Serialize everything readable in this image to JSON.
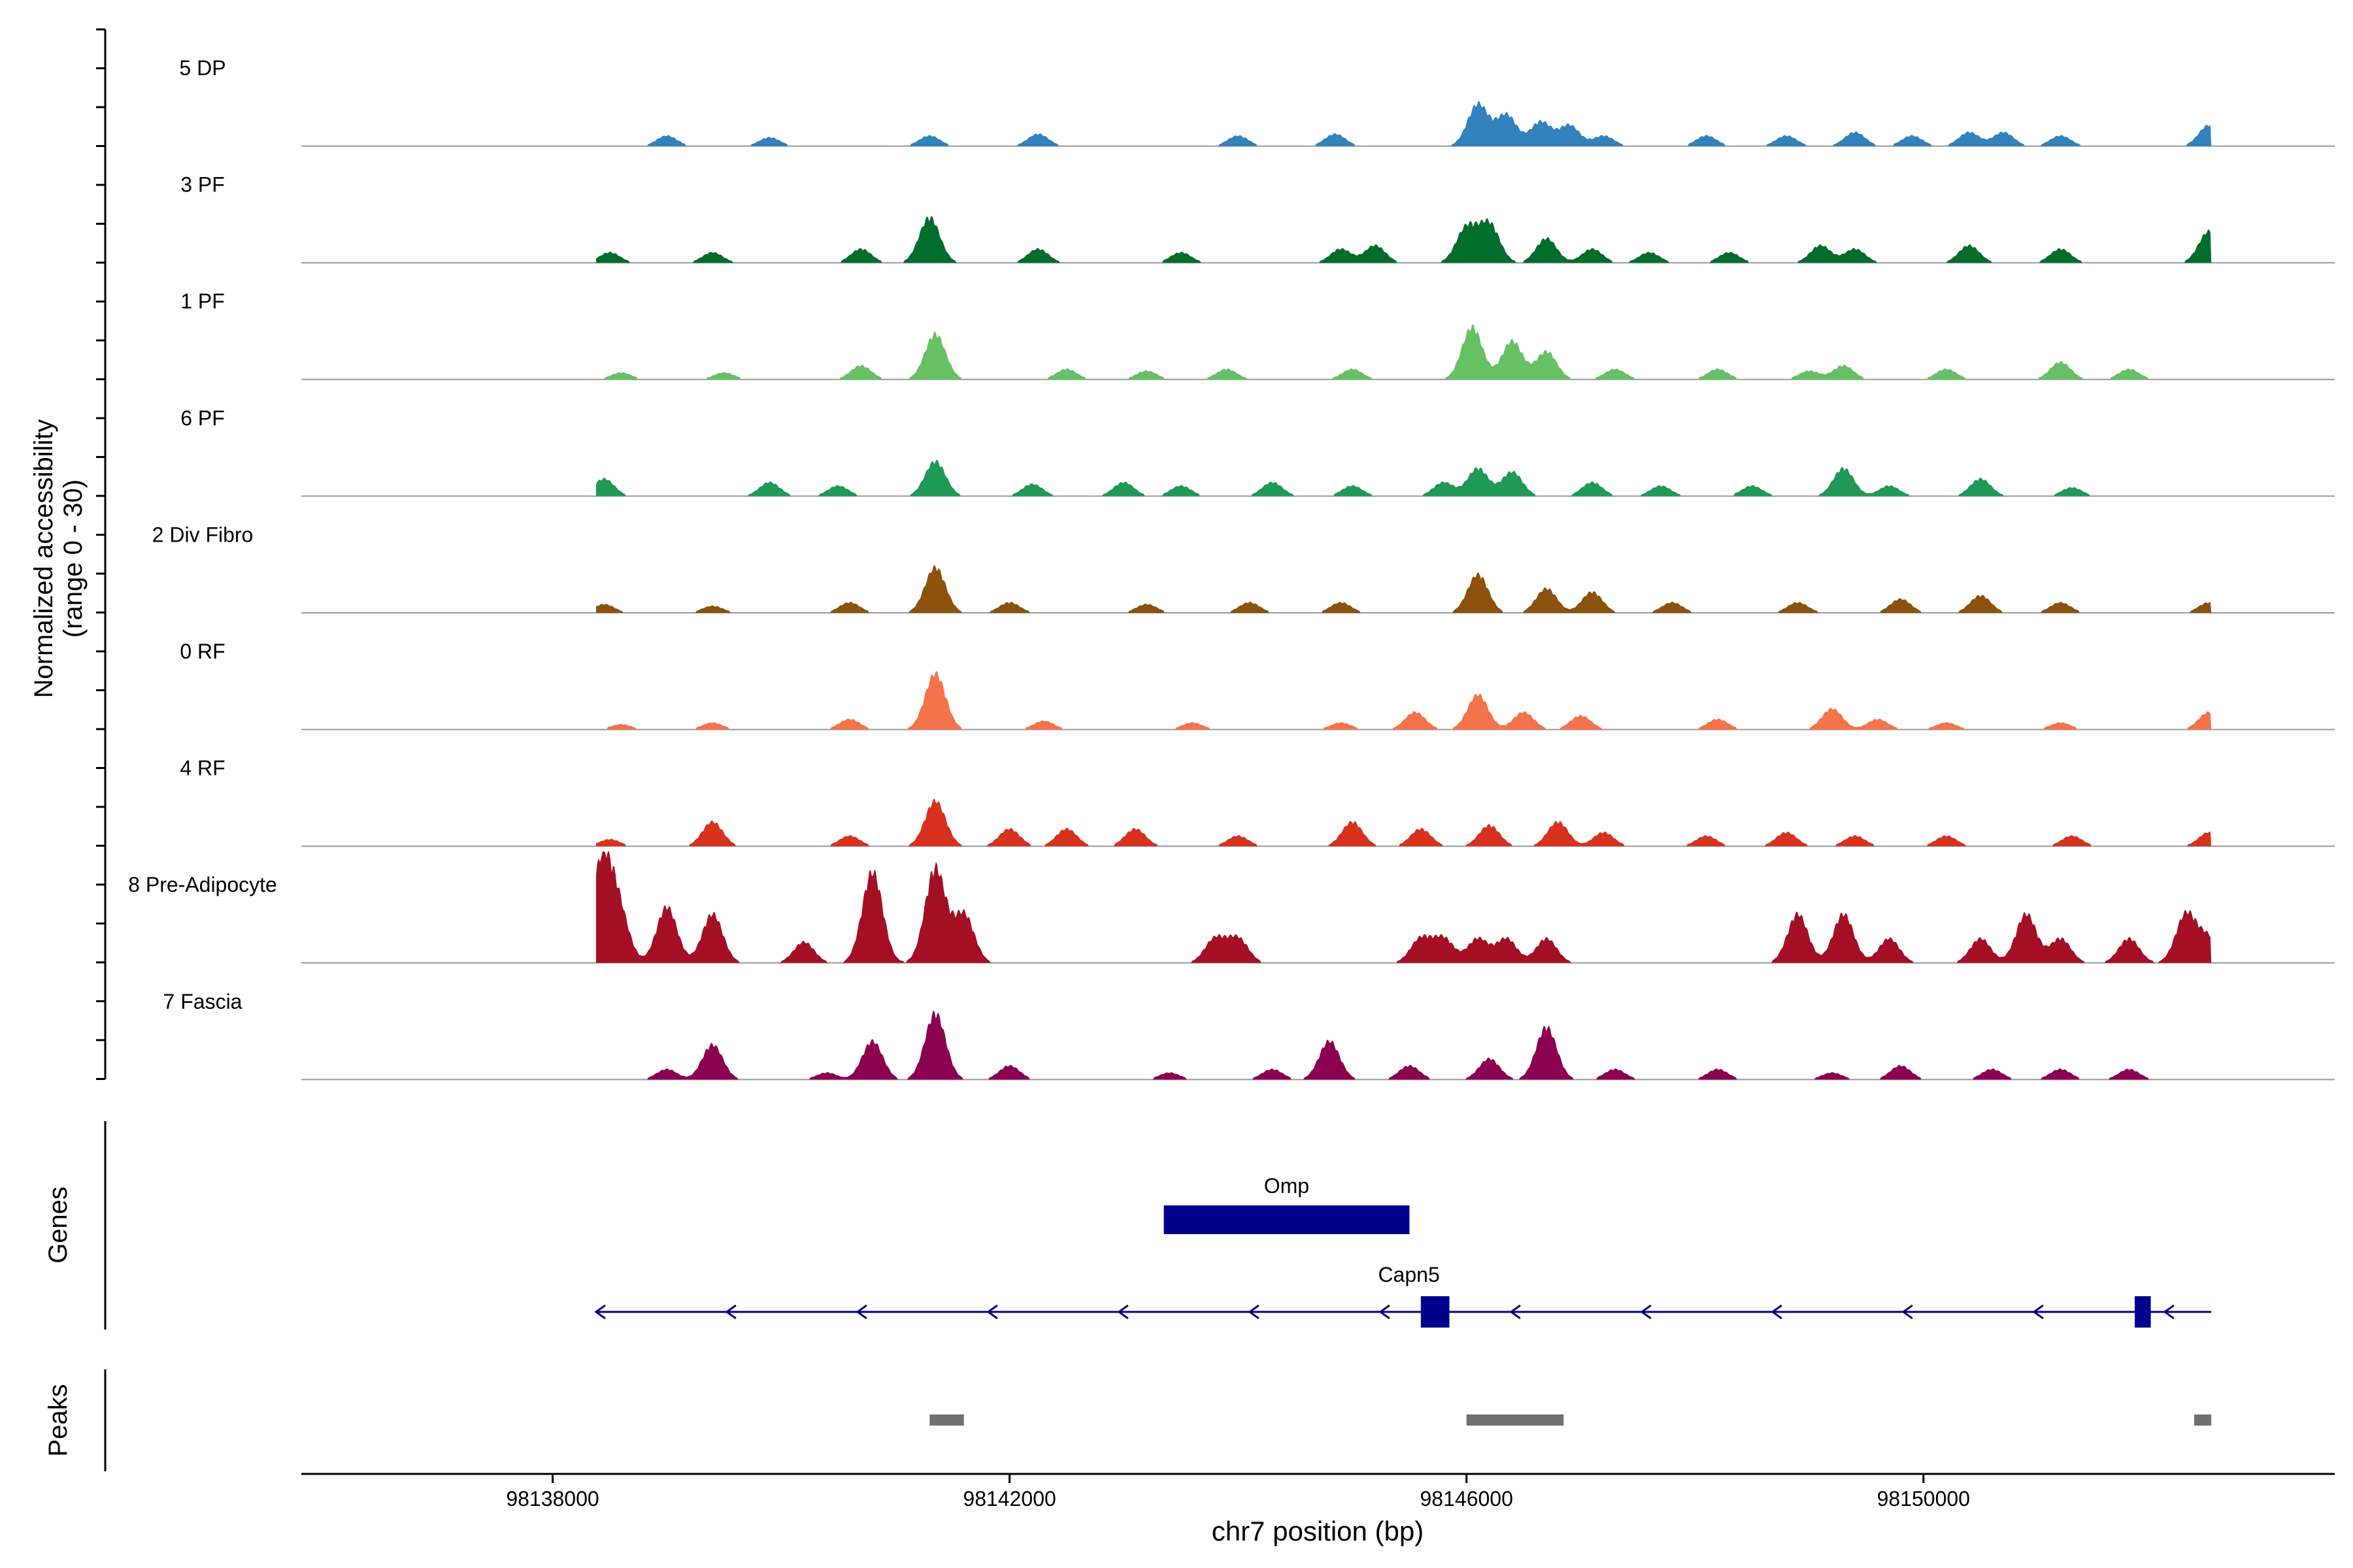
{
  "chart_data": {
    "type": "area",
    "title": "",
    "ylabel_line1": "Normalized accessibility",
    "ylabel_line2": "(range 0 - 30)",
    "xlabel": "chr7 position (bp)",
    "xlim": [
      98135800,
      98153600
    ],
    "ylim": [
      0,
      30
    ],
    "x_ticks": [
      98138000,
      98142000,
      98146000,
      98150000
    ],
    "x_tick_labels": [
      "98138000",
      "98142000",
      "98146000",
      "98150000"
    ],
    "region": [
      98138380,
      98152520
    ],
    "tracks": [
      {
        "name": "5 DP",
        "color": "#3182BD",
        "peaks": [
          [
            98139000,
            3
          ],
          [
            98139900,
            2.5
          ],
          [
            98141300,
            3
          ],
          [
            98142250,
            3.5
          ],
          [
            98144000,
            3
          ],
          [
            98144850,
            3.5
          ],
          [
            98146100,
            12
          ],
          [
            98146350,
            9
          ],
          [
            98146650,
            7
          ],
          [
            98146900,
            6
          ],
          [
            98147200,
            3
          ],
          [
            98148100,
            3
          ],
          [
            98148800,
            3
          ],
          [
            98149400,
            4
          ],
          [
            98149900,
            3
          ],
          [
            98150400,
            4
          ],
          [
            98150700,
            4
          ],
          [
            98151200,
            3
          ],
          [
            98152500,
            6
          ]
        ]
      },
      {
        "name": "3 PF",
        "color": "#006D2C",
        "peaks": [
          [
            98138500,
            3
          ],
          [
            98139400,
            3
          ],
          [
            98140700,
            4
          ],
          [
            98141300,
            13
          ],
          [
            98142250,
            4
          ],
          [
            98143500,
            3
          ],
          [
            98144900,
            4
          ],
          [
            98145200,
            5
          ],
          [
            98146000,
            10
          ],
          [
            98146200,
            11
          ],
          [
            98146700,
            7
          ],
          [
            98147100,
            4
          ],
          [
            98147600,
            3
          ],
          [
            98148300,
            3
          ],
          [
            98149100,
            5
          ],
          [
            98149400,
            4
          ],
          [
            98150400,
            5
          ],
          [
            98151200,
            4
          ],
          [
            98152500,
            9
          ]
        ]
      },
      {
        "name": "1 PF",
        "color": "#66C164",
        "peaks": [
          [
            98138600,
            2
          ],
          [
            98139500,
            2
          ],
          [
            98140700,
            4
          ],
          [
            98141350,
            13
          ],
          [
            98142500,
            3
          ],
          [
            98143200,
            2.5
          ],
          [
            98143900,
            3
          ],
          [
            98145000,
            3
          ],
          [
            98146050,
            15
          ],
          [
            98146400,
            11
          ],
          [
            98146700,
            8
          ],
          [
            98147300,
            3
          ],
          [
            98148200,
            3
          ],
          [
            98149000,
            2.5
          ],
          [
            98149300,
            4
          ],
          [
            98150200,
            3
          ],
          [
            98151200,
            5
          ],
          [
            98151800,
            3
          ]
        ]
      },
      {
        "name": "6 PF",
        "color": "#1F9955",
        "peaks": [
          [
            98138450,
            5
          ],
          [
            98139900,
            4
          ],
          [
            98140500,
            3
          ],
          [
            98141350,
            10
          ],
          [
            98142200,
            3.5
          ],
          [
            98143000,
            4
          ],
          [
            98143500,
            3
          ],
          [
            98144300,
            4
          ],
          [
            98145000,
            3
          ],
          [
            98145800,
            4
          ],
          [
            98146100,
            8
          ],
          [
            98146400,
            7
          ],
          [
            98147100,
            4
          ],
          [
            98147700,
            3
          ],
          [
            98148500,
            3
          ],
          [
            98149300,
            8
          ],
          [
            98149700,
            3
          ],
          [
            98150500,
            5
          ],
          [
            98151300,
            2.5
          ]
        ]
      },
      {
        "name": "2 Div Fibro",
        "color": "#8C510A",
        "peaks": [
          [
            98138450,
            2.5
          ],
          [
            98139400,
            2
          ],
          [
            98140600,
            3
          ],
          [
            98141350,
            13
          ],
          [
            98142000,
            3
          ],
          [
            98143200,
            2.5
          ],
          [
            98144100,
            3
          ],
          [
            98144900,
            3
          ],
          [
            98146100,
            11
          ],
          [
            98146700,
            7
          ],
          [
            98147100,
            6
          ],
          [
            98147800,
            3
          ],
          [
            98148900,
            3
          ],
          [
            98149800,
            4
          ],
          [
            98150500,
            5
          ],
          [
            98151200,
            3
          ],
          [
            98152500,
            3
          ]
        ]
      },
      {
        "name": "0 RF",
        "color": "#F4734A",
        "peaks": [
          [
            98138600,
            1.5
          ],
          [
            98139400,
            2
          ],
          [
            98140600,
            3
          ],
          [
            98141350,
            16
          ],
          [
            98142300,
            2.5
          ],
          [
            98143600,
            2
          ],
          [
            98144900,
            2
          ],
          [
            98145550,
            5
          ],
          [
            98146100,
            10
          ],
          [
            98146500,
            5
          ],
          [
            98147000,
            4
          ],
          [
            98148200,
            3
          ],
          [
            98149200,
            6
          ],
          [
            98149600,
            3
          ],
          [
            98150200,
            2
          ],
          [
            98151200,
            2
          ],
          [
            98152500,
            5
          ]
        ]
      },
      {
        "name": "4 RF",
        "color": "#D6321E",
        "peaks": [
          [
            98138500,
            2
          ],
          [
            98139400,
            7
          ],
          [
            98140600,
            3
          ],
          [
            98141350,
            13
          ],
          [
            98142000,
            5
          ],
          [
            98142500,
            5
          ],
          [
            98143100,
            5
          ],
          [
            98144000,
            3
          ],
          [
            98145000,
            7
          ],
          [
            98145600,
            5
          ],
          [
            98146200,
            6
          ],
          [
            98146800,
            7
          ],
          [
            98147200,
            4
          ],
          [
            98148100,
            3
          ],
          [
            98148800,
            4
          ],
          [
            98149400,
            3
          ],
          [
            98150200,
            3
          ],
          [
            98151300,
            3
          ],
          [
            98152500,
            4
          ]
        ]
      },
      {
        "name": "8 Pre-Adipocyte",
        "color": "#A50F24",
        "peaks": [
          [
            98138430,
            28
          ],
          [
            98138580,
            14
          ],
          [
            98139000,
            16
          ],
          [
            98139400,
            14
          ],
          [
            98140200,
            6
          ],
          [
            98140800,
            26
          ],
          [
            98141350,
            27
          ],
          [
            98141600,
            14
          ],
          [
            98143800,
            7
          ],
          [
            98144000,
            7
          ],
          [
            98145600,
            7
          ],
          [
            98145800,
            7
          ],
          [
            98146100,
            7
          ],
          [
            98146350,
            7
          ],
          [
            98146700,
            7
          ],
          [
            98148900,
            14
          ],
          [
            98149300,
            14
          ],
          [
            98149700,
            7
          ],
          [
            98150500,
            7
          ],
          [
            98150900,
            14
          ],
          [
            98151200,
            7
          ],
          [
            98151800,
            7
          ],
          [
            98152300,
            14
          ],
          [
            98152500,
            7
          ]
        ]
      },
      {
        "name": "7 Fascia",
        "color": "#8B0050",
        "peaks": [
          [
            98139000,
            3
          ],
          [
            98139400,
            10
          ],
          [
            98140400,
            2
          ],
          [
            98140800,
            11
          ],
          [
            98141350,
            19
          ],
          [
            98142000,
            4
          ],
          [
            98143400,
            2
          ],
          [
            98144300,
            3
          ],
          [
            98144800,
            11
          ],
          [
            98145500,
            4
          ],
          [
            98146200,
            6
          ],
          [
            98146700,
            15
          ],
          [
            98147300,
            3
          ],
          [
            98148200,
            3
          ],
          [
            98149200,
            2
          ],
          [
            98149800,
            4
          ],
          [
            98150600,
            3
          ],
          [
            98151200,
            3
          ],
          [
            98151800,
            3
          ]
        ]
      }
    ],
    "genes": [
      {
        "name": "Omp",
        "start": 98143350,
        "end": 98145500,
        "strand": "+",
        "row": 0,
        "exons": [
          [
            98143350,
            98145500
          ]
        ]
      },
      {
        "name": "Capn5",
        "start": 98138380,
        "end": 98152520,
        "strand": "-",
        "row": 1,
        "exons": [
          [
            98145600,
            98145850
          ],
          [
            98151850,
            98151990
          ]
        ]
      }
    ],
    "peaks_track": [
      [
        98141300,
        98141600
      ],
      [
        98146000,
        98146850
      ],
      [
        98152370,
        98152520
      ]
    ],
    "panel_labels": [
      "Genes",
      "Peaks"
    ],
    "colors": {
      "gene": "#00008B",
      "peak_bar": "#707070",
      "baseline": "#9A9A9A"
    }
  }
}
